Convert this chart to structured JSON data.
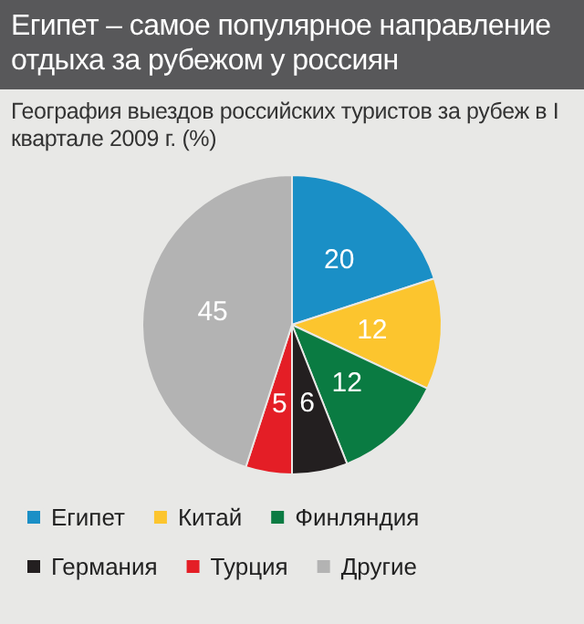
{
  "chart_data": {
    "type": "pie",
    "title": "Египет – самое популярное направление отдыха за рубежом у россиян",
    "subtitle": "География выездов российских туристов за рубеж в I квартале 2009 г. (%)",
    "categories": [
      "Египет",
      "Китай",
      "Финляндия",
      "Германия",
      "Турция",
      "Другие"
    ],
    "values": [
      20,
      12,
      12,
      6,
      5,
      45
    ],
    "colors": [
      "#1a8fc6",
      "#fcc52e",
      "#0a7b42",
      "#231f20",
      "#e41e26",
      "#b3b3b3"
    ],
    "data_labels": true,
    "legend": "bottom"
  }
}
